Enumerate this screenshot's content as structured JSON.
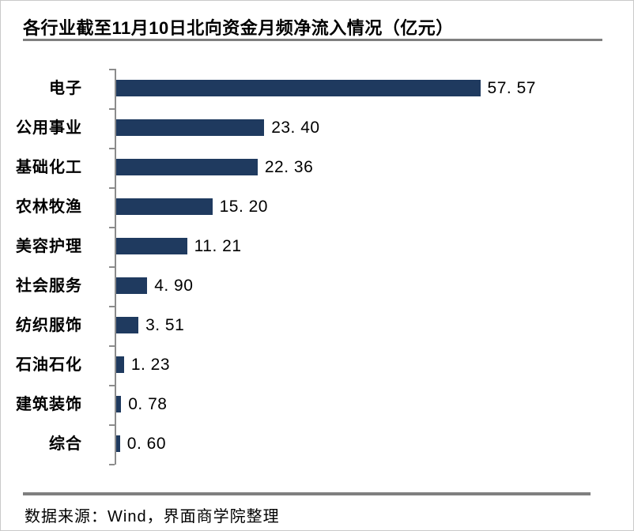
{
  "title": "各行业截至11月10日北向资金月频净流入情况（亿元）",
  "footer": {
    "source_text": "数据来源：Wind，界面商学院整理"
  },
  "colors": {
    "bar": "#1F3A5F",
    "axis": "#8C8C8C",
    "rule": "#7F7F7F",
    "border": "#C9C9C9",
    "text": "#000000"
  },
  "chart_data": {
    "type": "bar",
    "orientation": "horizontal",
    "title": "各行业截至11月10日北向资金月频净流入情况（亿元）",
    "categories": [
      "电子",
      "公用事业",
      "基础化工",
      "农林牧渔",
      "美容护理",
      "社会服务",
      "纺织服饰",
      "石油石化",
      "建筑装饰",
      "综合"
    ],
    "values": [
      57.57,
      23.4,
      22.36,
      15.2,
      11.21,
      4.9,
      3.51,
      1.23,
      0.78,
      0.6
    ],
    "value_labels": [
      "57. 57",
      "23. 40",
      "22. 36",
      "15. 20",
      "11. 21",
      "4. 90",
      "3. 51",
      "1. 23",
      "0. 78",
      "0. 60"
    ],
    "xlabel": "",
    "ylabel": "",
    "xlim": [
      0,
      80
    ],
    "grid": false,
    "legend": null,
    "data_labels": true,
    "source": "数据来源：Wind，界面商学院整理"
  }
}
